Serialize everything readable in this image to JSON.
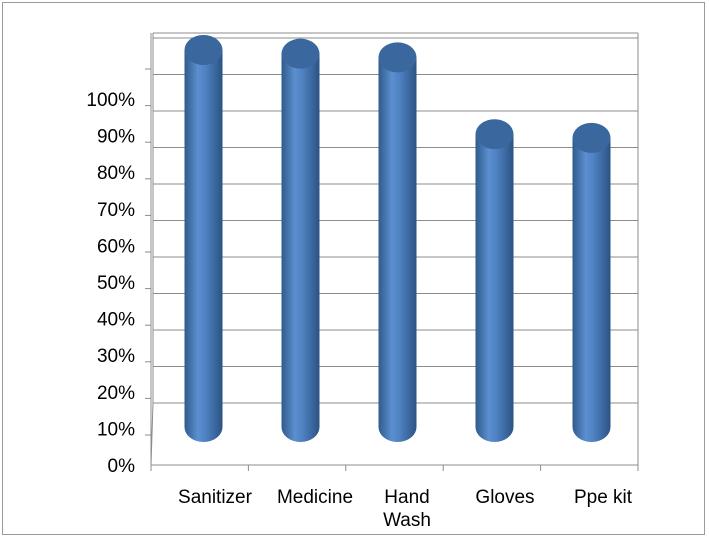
{
  "chart_data": {
    "type": "bar",
    "style": "3d-cylinder",
    "title": "",
    "xlabel": "",
    "ylabel": "",
    "categories": [
      "Sanitizer",
      "Medicine",
      "Hand Wash",
      "Gloves",
      "Ppe kit"
    ],
    "category_label_lines": [
      [
        "Sanitizer"
      ],
      [
        "Medicine"
      ],
      [
        "Hand",
        "Wash"
      ],
      [
        "Gloves"
      ],
      [
        "Ppe kit"
      ]
    ],
    "values": [
      103,
      102,
      101,
      80,
      79
    ],
    "y_ticks": [
      "0%",
      "10%",
      "20%",
      "30%",
      "40%",
      "50%",
      "60%",
      "70%",
      "80%",
      "90%",
      "100%"
    ],
    "ylim": [
      0,
      100
    ],
    "grid": true,
    "legend": "none",
    "colors": {
      "bar_body": "#4a7ebb",
      "bar_top": "#3a679d",
      "bar_highlight": "#7aa6d8",
      "gridline": "#8c8c8c",
      "axis": "#8c8c8c"
    }
  }
}
